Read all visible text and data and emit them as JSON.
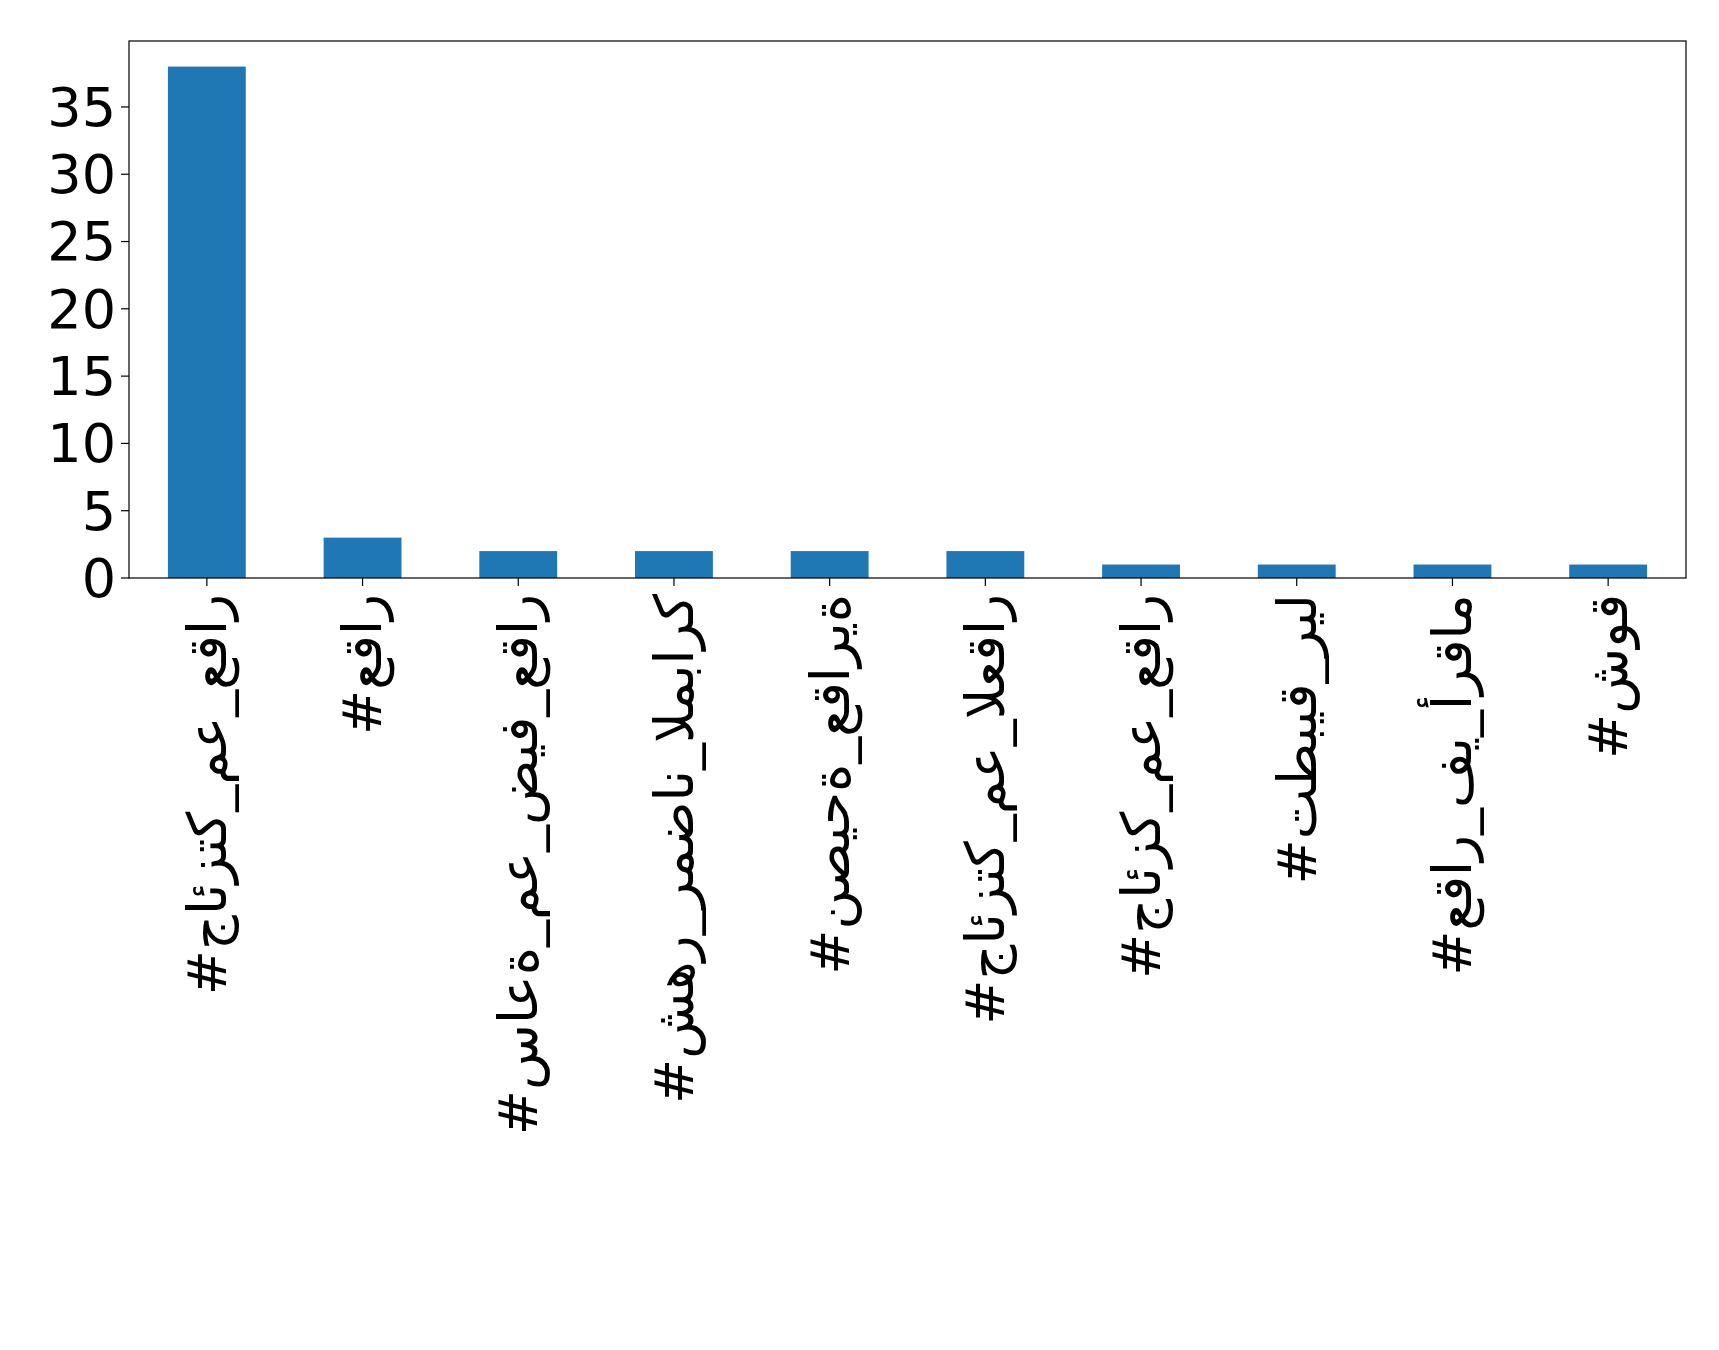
{
  "chart_data": {
    "type": "bar",
    "categories": [
      "#جائزتك_مع_عقار",
      "#عقار",
      "#ساعة_مع_ضيف_عقار",
      "#شهر_رمضان_المبارك",
      "#نصيحة_عقارية",
      "#جائزتك_مع_العقار",
      "#جائزك_مع_عقار",
      "#تطبيق_ريل",
      "#عقار_في_أرقام",
      "#شوق"
    ],
    "values": [
      38,
      3,
      2,
      2,
      2,
      2,
      1,
      1,
      1,
      1
    ],
    "color": "#1f77b4",
    "ylim": [
      0,
      39.9
    ],
    "yticks": [
      0,
      5,
      10,
      15,
      20,
      25,
      30,
      35
    ]
  }
}
